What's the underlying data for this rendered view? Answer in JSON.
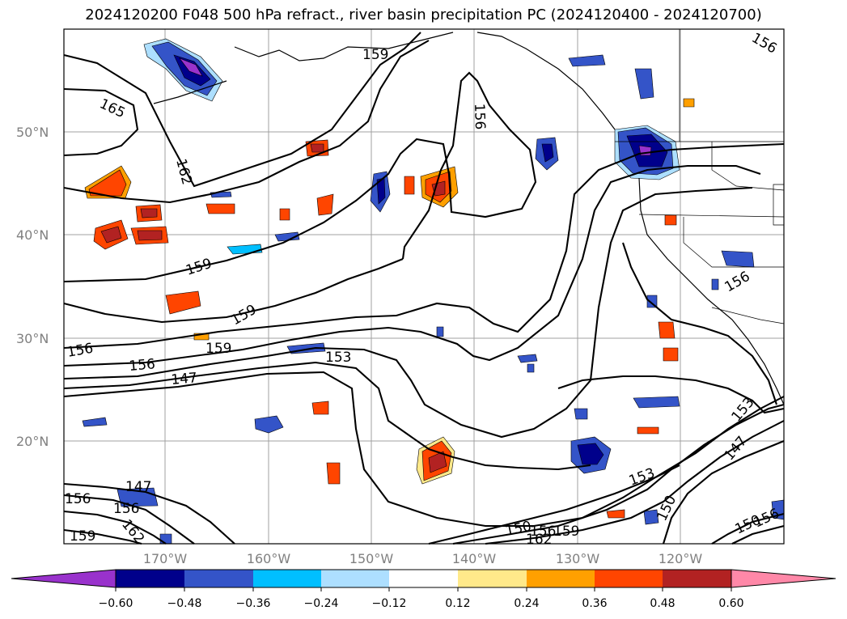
{
  "title": "2024120200 F048 500 hPa refract., river basin precipitation PC (2024120400 - 2024120700)",
  "map": {
    "lat_labels": [
      "50°N",
      "40°N",
      "30°N",
      "20°N"
    ],
    "lon_labels": [
      "170°W",
      "160°W",
      "150°W",
      "140°W",
      "130°W",
      "120°W"
    ],
    "contour_labels": [
      "159",
      "165",
      "162",
      "156",
      "159",
      "159",
      "156",
      "156",
      "159",
      "153",
      "147",
      "147",
      "156",
      "156",
      "162",
      "159",
      "153",
      "147",
      "153",
      "150",
      "150",
      "156",
      "159",
      "162",
      "150",
      "156",
      "156",
      "156"
    ]
  },
  "colorbar": {
    "tick_labels": [
      "−0.60",
      "−0.48",
      "−0.36",
      "−0.24",
      "−0.12",
      "0.12",
      "0.24",
      "0.36",
      "0.48",
      "0.60"
    ],
    "colors": [
      "#9932CC",
      "#00008B",
      "#3454C8",
      "#00BFFF",
      "#ADDFFF",
      "#FFFFFF",
      "#FFE98A",
      "#FFA000",
      "#FF4500",
      "#B22222",
      "#FF88A8"
    ]
  }
}
